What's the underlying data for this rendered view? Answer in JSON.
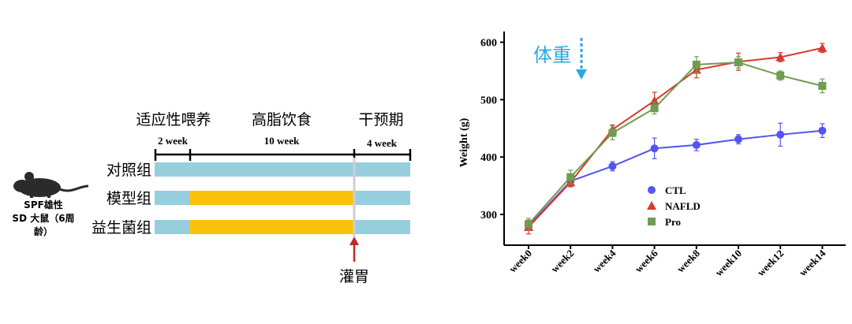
{
  "schematic": {
    "phases": [
      "适应性喂养",
      "高脂饮食",
      "干预期"
    ],
    "durations": [
      "2 week",
      "10 week",
      "4 week"
    ],
    "groups": [
      {
        "name": "对照组",
        "segments": [
          "baseline",
          "baseline",
          "baseline"
        ]
      },
      {
        "name": "模型组",
        "segments": [
          "baseline",
          "high-fat",
          "baseline"
        ]
      },
      {
        "name": "益生菌组",
        "segments": [
          "baseline",
          "high-fat",
          "baseline"
        ]
      }
    ],
    "animal_label": [
      "SPF雄性",
      "SD 大鼠（6周",
      "龄）"
    ],
    "gavage_label": "灌胃",
    "colors": {
      "baseline": "#96cede",
      "high-fat": "#fbc20c",
      "arrow": "#c0272d",
      "mouse": "#2b2b2b"
    }
  },
  "chart_data": {
    "type": "line",
    "annotation": "体重",
    "annotation_color": "#27a9e1",
    "ylabel": "Weight (g)",
    "xlabel": "",
    "categories": [
      "week0",
      "week2",
      "week4",
      "week6",
      "week8",
      "week10",
      "week12",
      "week14"
    ],
    "ylim": [
      250,
      630
    ],
    "yticks": [
      300,
      400,
      500,
      600
    ],
    "legend_position": "center",
    "series": [
      {
        "name": "CTL",
        "color": "#5454f0",
        "marker": "circle",
        "values": [
          280,
          358,
          384,
          415,
          421,
          431,
          439,
          446
        ],
        "errors": [
          8,
          8,
          8,
          18,
          10,
          8,
          20,
          12
        ]
      },
      {
        "name": "NAFLD",
        "color": "#d63a2f",
        "marker": "triangle",
        "values": [
          278,
          356,
          448,
          498,
          552,
          566,
          574,
          590
        ],
        "errors": [
          12,
          8,
          8,
          15,
          14,
          15,
          8,
          8
        ]
      },
      {
        "name": "Pro",
        "color": "#6f9c50",
        "marker": "square",
        "values": [
          283,
          365,
          442,
          485,
          561,
          565,
          542,
          524
        ],
        "errors": [
          10,
          12,
          12,
          10,
          14,
          10,
          8,
          12
        ]
      }
    ]
  }
}
